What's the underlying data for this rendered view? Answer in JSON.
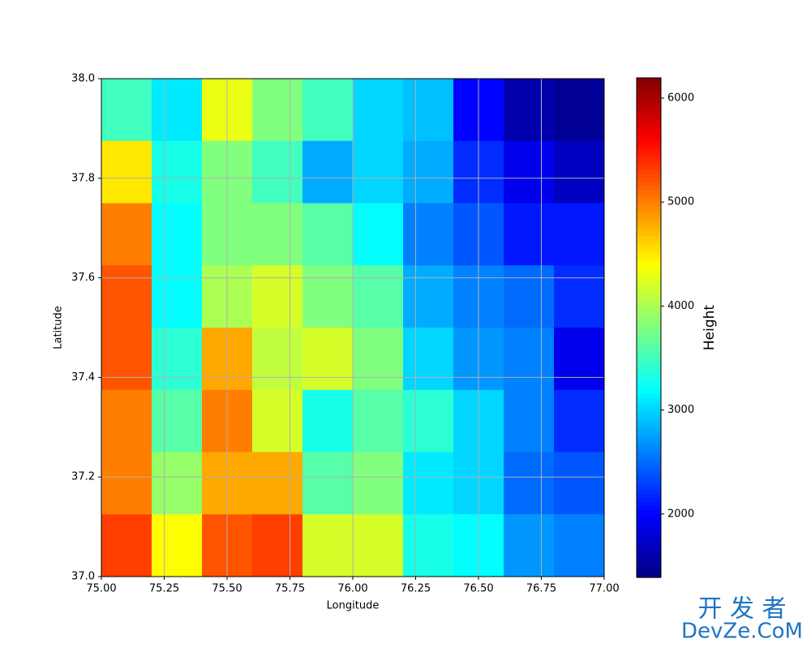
{
  "chart_data": {
    "type": "heatmap",
    "x_label": "Longitude",
    "y_label": "Latitude",
    "colorbar_label": "Height",
    "x": [
      75.1,
      75.3,
      75.5,
      75.7,
      75.9,
      76.1,
      76.3,
      76.5,
      76.7,
      76.9
    ],
    "y": [
      37.9375,
      37.8125,
      37.6875,
      37.5625,
      37.4375,
      37.3125,
      37.1875,
      37.0625
    ],
    "z": [
      [
        3500,
        3100,
        4300,
        3800,
        3500,
        3000,
        2900,
        2000,
        1600,
        1500
      ],
      [
        4500,
        3300,
        3800,
        3500,
        2800,
        3000,
        2800,
        2200,
        1900,
        1700
      ],
      [
        5000,
        3200,
        3800,
        3800,
        3600,
        3200,
        2600,
        2400,
        2100,
        2100
      ],
      [
        5200,
        3200,
        4000,
        4200,
        3800,
        3600,
        2800,
        2600,
        2500,
        2200
      ],
      [
        5200,
        3400,
        4800,
        4100,
        4200,
        3800,
        3000,
        2700,
        2600,
        1900
      ],
      [
        5000,
        3600,
        5000,
        4200,
        3300,
        3600,
        3400,
        3000,
        2600,
        2200
      ],
      [
        5000,
        3900,
        4800,
        4800,
        3600,
        3800,
        3100,
        3000,
        2500,
        2400
      ],
      [
        5300,
        4400,
        5200,
        5300,
        4200,
        4200,
        3300,
        3200,
        2700,
        2600
      ]
    ],
    "colormap": "jet",
    "xlim": [
      75,
      77
    ],
    "ylim": [
      37,
      38
    ],
    "clim": [
      1390,
      6195
    ],
    "xticks": [
      {
        "value": 75,
        "label": "75.00"
      },
      75.25,
      {
        "value": 75.5,
        "label": "75.50"
      },
      75.75,
      {
        "value": 76,
        "label": "76.00"
      },
      76.25,
      {
        "value": 76.5,
        "label": "76.50"
      },
      76.75,
      {
        "value": 77,
        "label": "77.00"
      }
    ],
    "yticks": [
      {
        "value": 37,
        "label": "37.0"
      },
      37.2,
      37.4,
      37.6,
      37.8,
      {
        "value": 38,
        "label": "38.0"
      }
    ],
    "cticks": [
      2000,
      3000,
      4000,
      5000,
      6000
    ],
    "grid": true,
    "watermark": [
      "开 发 者",
      "DevZe.CoM"
    ]
  }
}
